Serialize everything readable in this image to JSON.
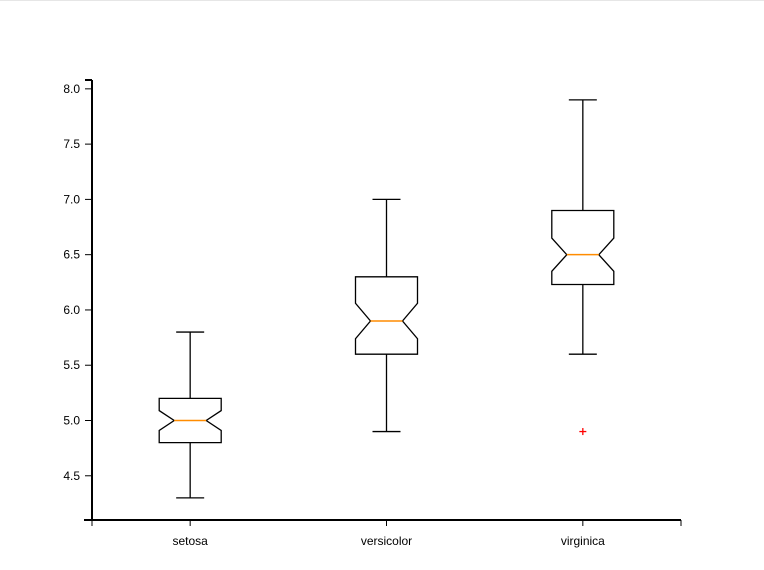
{
  "chart_data": {
    "type": "boxplot",
    "notched": true,
    "categories": [
      "setosa",
      "versicolor",
      "virginica"
    ],
    "boxes": [
      {
        "category": "setosa",
        "whisker_low": 4.3,
        "q1": 4.8,
        "median": 5.0,
        "q3": 5.2,
        "whisker_high": 5.8,
        "notch_low": 4.91,
        "notch_high": 5.09,
        "outliers": []
      },
      {
        "category": "versicolor",
        "whisker_low": 4.9,
        "q1": 5.6,
        "median": 5.9,
        "q3": 6.3,
        "whisker_high": 7.0,
        "notch_low": 5.74,
        "notch_high": 6.06,
        "outliers": []
      },
      {
        "category": "virginica",
        "whisker_low": 5.6,
        "q1": 6.23,
        "median": 6.5,
        "q3": 6.9,
        "whisker_high": 7.9,
        "notch_low": 6.35,
        "notch_high": 6.65,
        "outliers": [
          4.9
        ]
      }
    ],
    "yticks": [
      "4.5",
      "5.0",
      "5.5",
      "6.0",
      "6.5",
      "7.0",
      "7.5",
      "8.0"
    ],
    "ylim": [
      4.1,
      8.08
    ],
    "grid": false,
    "title": "",
    "xlabel": "",
    "ylabel": "",
    "colors": {
      "box": "#000000",
      "median": "#ff8c00",
      "outlier": "#ff0000",
      "axis": "#000000"
    }
  }
}
